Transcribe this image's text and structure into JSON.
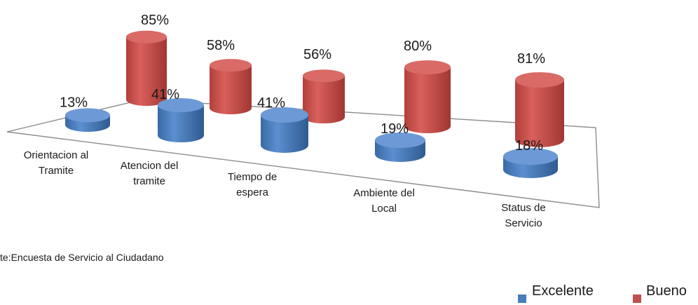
{
  "chart_data": {
    "type": "bar",
    "style": "3d-cylinder",
    "categories": [
      [
        "Orientacion al",
        "Tramite"
      ],
      [
        "Atencion del",
        "tramite"
      ],
      [
        "Tiempo de",
        "espera"
      ],
      [
        "Ambiente del",
        "Local"
      ],
      [
        "Status de",
        "Servicio"
      ]
    ],
    "series": [
      {
        "name": "Excelente",
        "values": [
          13,
          41,
          41,
          19,
          18
        ],
        "labels": [
          "13%",
          "41%",
          "41%",
          "19%",
          "18%"
        ],
        "color": "#4a7ebb"
      },
      {
        "name": "Bueno",
        "values": [
          85,
          58,
          56,
          80,
          81
        ],
        "labels": [
          "85%",
          "58%",
          "56%",
          "80%",
          "81%"
        ],
        "color": "#c0504d"
      }
    ],
    "source_text": "te:Encuesta de Servicio al Ciudadano",
    "legend": {
      "placement": "bottom-right"
    }
  }
}
